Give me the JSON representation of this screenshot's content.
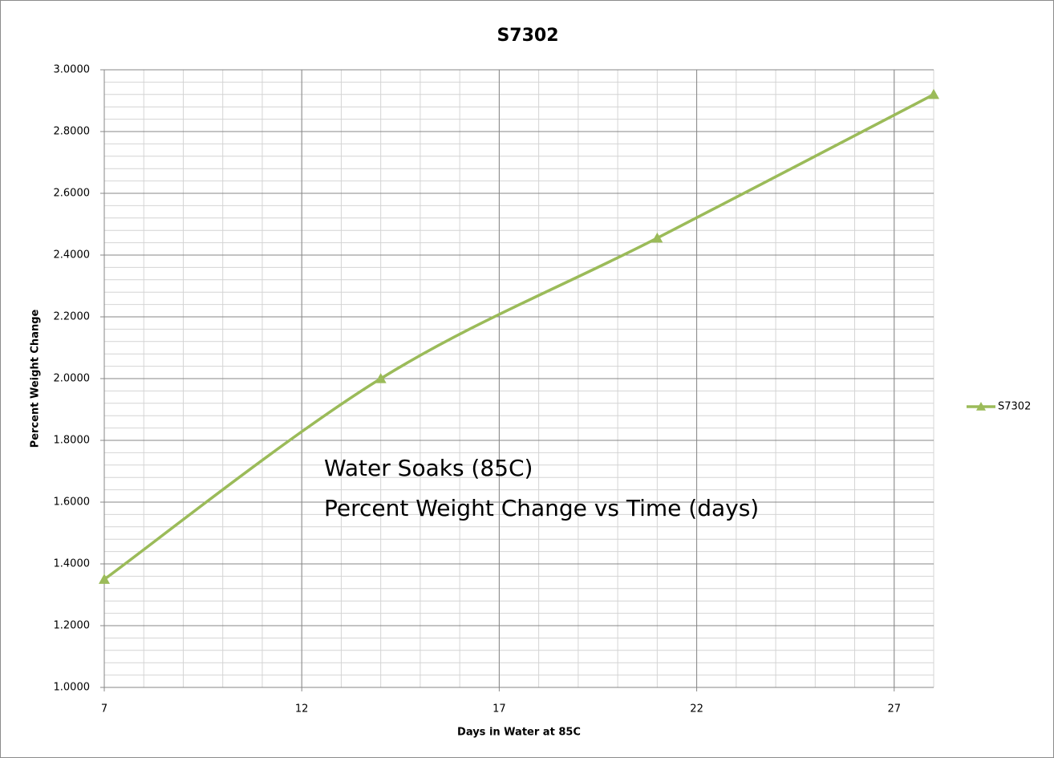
{
  "chart_data": {
    "type": "line",
    "title": "S7302",
    "x_label": "Days in Water at 85C",
    "y_label": "Percent Weight Change",
    "annotation": [
      "Water Soaks (85C)",
      "Percent Weight Change vs Time (days)"
    ],
    "x": [
      7,
      14,
      21,
      28
    ],
    "series": [
      {
        "name": "S7302",
        "color": "#9bbb59",
        "values": [
          1.35,
          2.0,
          2.455,
          2.92
        ]
      }
    ],
    "xlim": [
      7,
      28
    ],
    "xticks": [
      7,
      12,
      17,
      22,
      27
    ],
    "ylim": [
      1,
      3
    ],
    "yticks": [
      {
        "value": 1,
        "label": "1.0000"
      },
      {
        "value": 1.2,
        "label": "1.2000"
      },
      {
        "value": 1.4,
        "label": "1.4000"
      },
      {
        "value": 1.6,
        "label": "1.6000"
      },
      {
        "value": 1.8,
        "label": "1.8000"
      },
      {
        "value": 2,
        "label": "2.0000"
      },
      {
        "value": 2.2,
        "label": "2.2000"
      },
      {
        "value": 2.4,
        "label": "2.4000"
      },
      {
        "value": 2.6,
        "label": "2.6000"
      },
      {
        "value": 2.8,
        "label": "2.8000"
      },
      {
        "value": 3,
        "label": "3.0000"
      }
    ],
    "grid": true,
    "minor_grid": {
      "x": 1,
      "y": 0.04
    },
    "smooth": true,
    "marker": "triangle",
    "legend": "right"
  }
}
